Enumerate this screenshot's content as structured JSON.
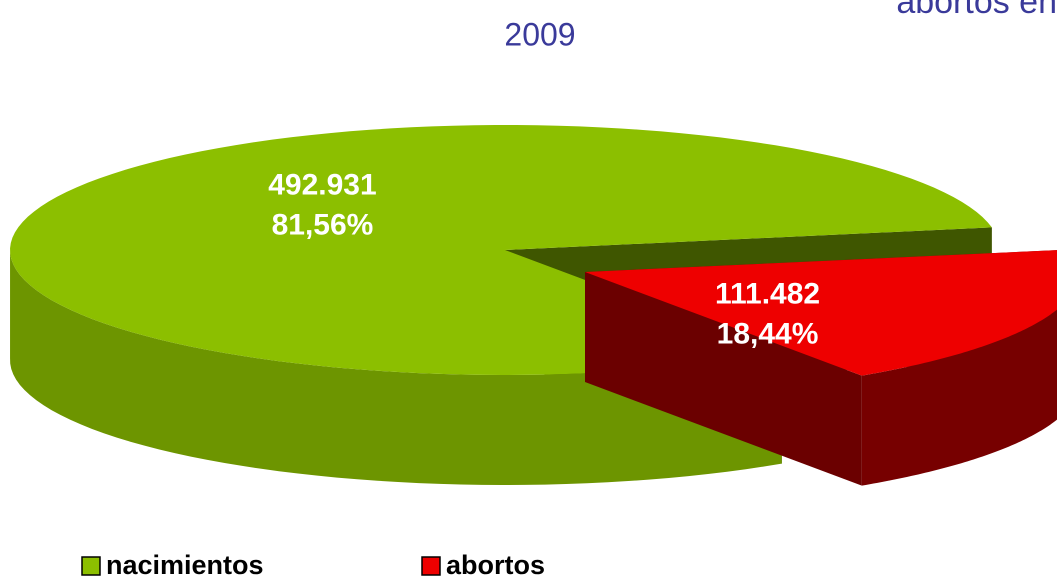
{
  "chart_data": {
    "type": "pie3d",
    "title": "abortos en",
    "subtitle": "2009",
    "categories": [
      "nacimientos",
      "abortos"
    ],
    "values": [
      492931,
      111482
    ],
    "value_labels": [
      "492.931",
      "111.482"
    ],
    "percentages": [
      81.56,
      18.44
    ],
    "percentage_labels": [
      "81,56%",
      "18,44%"
    ],
    "colors": [
      "#8cbf00",
      "#ee0000"
    ],
    "explode": [
      false,
      true
    ],
    "legend": "bottom"
  }
}
